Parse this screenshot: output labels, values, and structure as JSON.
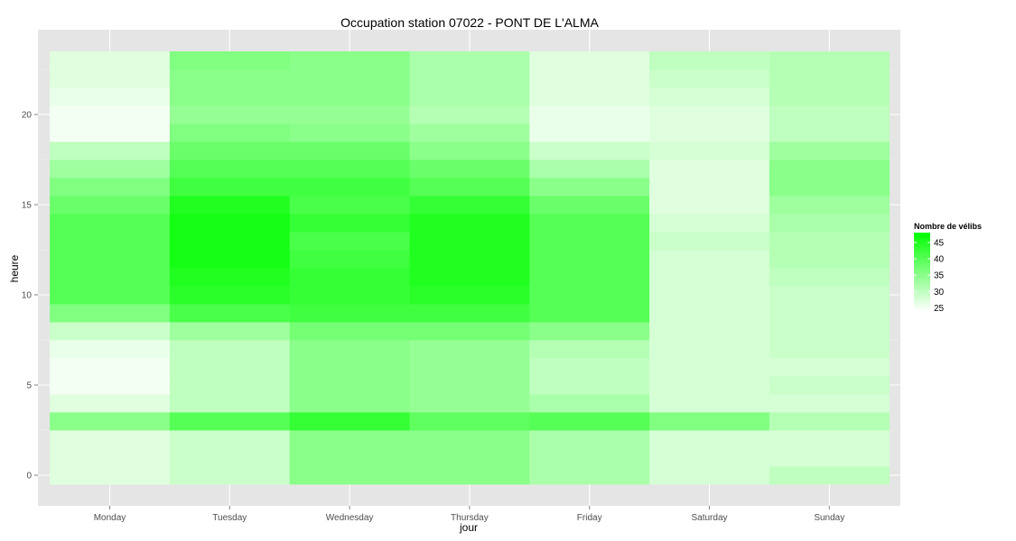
{
  "chart_data": {
    "type": "heatmap",
    "title": "Occupation station 07022 - PONT DE L'ALMA",
    "xlabel": "jour",
    "ylabel": "heure",
    "x_categories": [
      "Monday",
      "Tuesday",
      "Wednesday",
      "Thursday",
      "Friday",
      "Saturday",
      "Sunday"
    ],
    "y_hours": [
      0,
      1,
      2,
      3,
      4,
      5,
      6,
      7,
      8,
      9,
      10,
      11,
      12,
      13,
      14,
      15,
      16,
      17,
      18,
      19,
      20,
      21,
      22,
      23
    ],
    "y_ticks": [
      0,
      5,
      10,
      15,
      20
    ],
    "ylim": [
      -0.5,
      23.5
    ],
    "grid": true,
    "legend": {
      "title": "Nombre de vélibs",
      "position": "right",
      "ticks": [
        25,
        30,
        35,
        40,
        45
      ],
      "range": [
        24,
        48
      ],
      "low_color": "#ffffff",
      "high_color": "#00ff00"
    },
    "values_by_day": [
      [
        27,
        27,
        27,
        35,
        27,
        25,
        25,
        26,
        29,
        36,
        40,
        40,
        40,
        40,
        40,
        38,
        36,
        33,
        30,
        25,
        25,
        26,
        27,
        27
      ],
      [
        29,
        29,
        29,
        40,
        30,
        30,
        30,
        30,
        33,
        41,
        44,
        45,
        46,
        46,
        46,
        45,
        42,
        40,
        38,
        36,
        34,
        35,
        35,
        36
      ],
      [
        35,
        35,
        35,
        43,
        35,
        35,
        35,
        35,
        37,
        42,
        43,
        43,
        42,
        41,
        43,
        41,
        42,
        40,
        38,
        35,
        34,
        35,
        35,
        35
      ],
      [
        35,
        35,
        35,
        39,
        34,
        34,
        34,
        34,
        37,
        42,
        44,
        45,
        45,
        45,
        45,
        43,
        40,
        38,
        35,
        33,
        31,
        32,
        32,
        32
      ],
      [
        32,
        32,
        32,
        40,
        32,
        30,
        30,
        31,
        35,
        40,
        40,
        40,
        40,
        40,
        40,
        38,
        35,
        32,
        29,
        26,
        26,
        27,
        27,
        27
      ],
      [
        28,
        28,
        28,
        36,
        28,
        28,
        28,
        28,
        28,
        28,
        28,
        28,
        28,
        29,
        28,
        27,
        27,
        27,
        28,
        27,
        27,
        28,
        29,
        30
      ],
      [
        30,
        28,
        28,
        31,
        28,
        29,
        28,
        29,
        29,
        29,
        29,
        30,
        31,
        31,
        32,
        33,
        35,
        35,
        33,
        30,
        30,
        31,
        31,
        31
      ]
    ]
  }
}
